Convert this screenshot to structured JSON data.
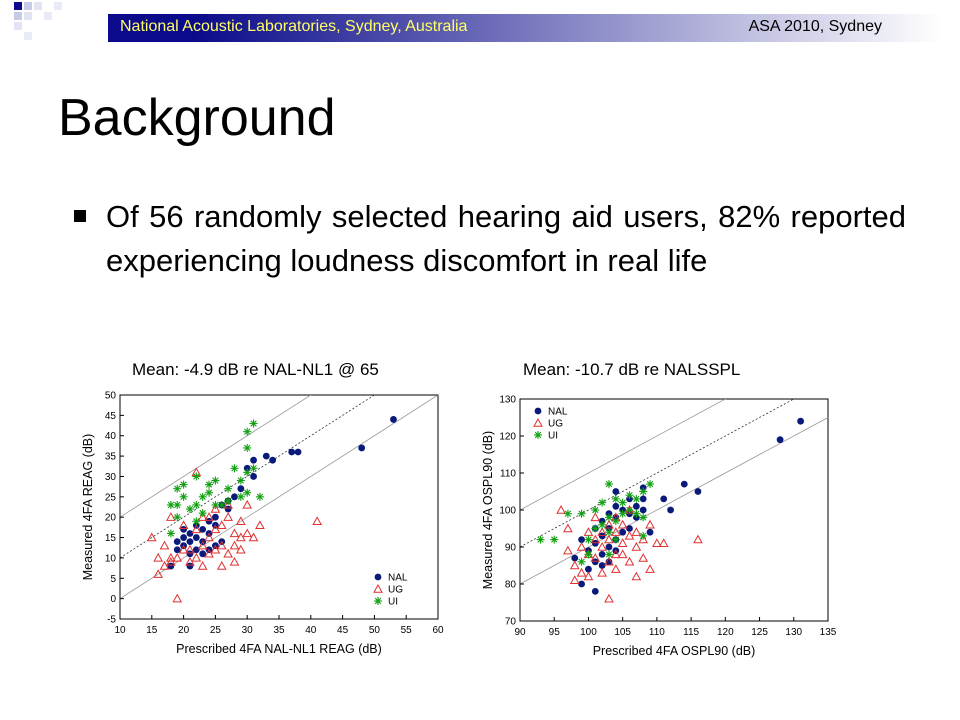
{
  "header": {
    "left_text": "National Acoustic Laboratories, Sydney, Australia",
    "right_text": "ASA 2010, Sydney"
  },
  "slide": {
    "title": "Background",
    "bullet": "Of 56 randomly selected hearing aid users, 82% reported experiencing loudness discomfort in real life"
  },
  "colors": {
    "header_gradient_start": "#0a0a8a",
    "header_gradient_end": "#ffffff",
    "header_left_text": "#ffff66",
    "nal": "#0a1a7a",
    "ug": "#e03030",
    "ui": "#10a010"
  },
  "chart_data": [
    {
      "type": "scatter",
      "heading": "Mean: -4.9 dB re NAL-NL1 @ 65",
      "xlabel": "Prescribed 4FA NAL-NL1 REAG (dB)",
      "ylabel": "Measured 4FA REAG (dB)",
      "xlim": [
        10,
        60
      ],
      "ylim": [
        -5,
        50
      ],
      "xticks": [
        10,
        15,
        20,
        25,
        30,
        35,
        40,
        45,
        50,
        55,
        60
      ],
      "yticks": [
        -5,
        0,
        5,
        10,
        15,
        20,
        25,
        30,
        35,
        40,
        45,
        50
      ],
      "reference_lines": [
        {
          "offset": -10,
          "style": "solid"
        },
        {
          "offset": 0,
          "style": "dotted"
        },
        {
          "offset": 10,
          "style": "solid"
        }
      ],
      "legend": {
        "position": "bottom-right",
        "entries": [
          "NAL",
          "UG",
          "UI"
        ]
      },
      "series": [
        {
          "name": "NAL",
          "marker": "circle",
          "points": [
            [
              18,
              8
            ],
            [
              19,
              12
            ],
            [
              19,
              14
            ],
            [
              20,
              13
            ],
            [
              20,
              15
            ],
            [
              20,
              17
            ],
            [
              21,
              8
            ],
            [
              21,
              11
            ],
            [
              21,
              14
            ],
            [
              21,
              16
            ],
            [
              22,
              12
            ],
            [
              22,
              15
            ],
            [
              22,
              18
            ],
            [
              23,
              11
            ],
            [
              23,
              14
            ],
            [
              23,
              17
            ],
            [
              24,
              12
            ],
            [
              24,
              16
            ],
            [
              24,
              19
            ],
            [
              25,
              13
            ],
            [
              25,
              18
            ],
            [
              25,
              20
            ],
            [
              26,
              14
            ],
            [
              26,
              23
            ],
            [
              27,
              22
            ],
            [
              27,
              24
            ],
            [
              28,
              25
            ],
            [
              29,
              27
            ],
            [
              30,
              32
            ],
            [
              31,
              30
            ],
            [
              31,
              34
            ],
            [
              33,
              35
            ],
            [
              34,
              34
            ],
            [
              37,
              36
            ],
            [
              38,
              36
            ],
            [
              48,
              37
            ],
            [
              53,
              44
            ]
          ]
        },
        {
          "name": "UG",
          "marker": "triangle",
          "points": [
            [
              15,
              15
            ],
            [
              16,
              6
            ],
            [
              16,
              10
            ],
            [
              17,
              8
            ],
            [
              17,
              13
            ],
            [
              18,
              9
            ],
            [
              18,
              10
            ],
            [
              18,
              20
            ],
            [
              19,
              0
            ],
            [
              19,
              10
            ],
            [
              20,
              12
            ],
            [
              20,
              18
            ],
            [
              21,
              9
            ],
            [
              21,
              12
            ],
            [
              22,
              10
            ],
            [
              22,
              17
            ],
            [
              22,
              31
            ],
            [
              23,
              8
            ],
            [
              23,
              13
            ],
            [
              23,
              20
            ],
            [
              24,
              11
            ],
            [
              24,
              15
            ],
            [
              24,
              20
            ],
            [
              25,
              12
            ],
            [
              25,
              17
            ],
            [
              25,
              22
            ],
            [
              26,
              8
            ],
            [
              26,
              13
            ],
            [
              26,
              18
            ],
            [
              27,
              11
            ],
            [
              27,
              20
            ],
            [
              27,
              23
            ],
            [
              28,
              9
            ],
            [
              28,
              13
            ],
            [
              28,
              16
            ],
            [
              29,
              12
            ],
            [
              29,
              15
            ],
            [
              29,
              19
            ],
            [
              30,
              16
            ],
            [
              30,
              23
            ],
            [
              31,
              15
            ],
            [
              32,
              18
            ],
            [
              41,
              19
            ]
          ]
        },
        {
          "name": "UI",
          "marker": "asterisk",
          "points": [
            [
              18,
              16
            ],
            [
              18,
              23
            ],
            [
              19,
              23
            ],
            [
              19,
              20
            ],
            [
              20,
              25
            ],
            [
              20,
              28
            ],
            [
              21,
              22
            ],
            [
              22,
              23
            ],
            [
              22,
              19
            ],
            [
              23,
              21
            ],
            [
              23,
              25
            ],
            [
              24,
              26
            ],
            [
              24,
              28
            ],
            [
              25,
              23
            ],
            [
              25,
              29
            ],
            [
              26,
              23
            ],
            [
              27,
              24
            ],
            [
              27,
              27
            ],
            [
              28,
              32
            ],
            [
              29,
              29
            ],
            [
              29,
              25
            ],
            [
              30,
              26
            ],
            [
              30,
              31
            ],
            [
              30,
              37
            ],
            [
              30,
              41
            ],
            [
              31,
              43
            ],
            [
              31,
              32
            ],
            [
              32,
              25
            ],
            [
              22,
              30
            ],
            [
              19,
              27
            ]
          ]
        }
      ]
    },
    {
      "type": "scatter",
      "heading": "Mean: -10.7 dB re NALSSPL",
      "xlabel": "Prescribed 4FA OSPL90 (dB)",
      "ylabel": "Measured 4FA OSPL90 (dB)",
      "xlim": [
        90,
        135
      ],
      "ylim": [
        70,
        130
      ],
      "xticks": [
        90,
        95,
        100,
        105,
        110,
        115,
        120,
        125,
        130,
        135
      ],
      "yticks": [
        70,
        80,
        90,
        100,
        110,
        120,
        130
      ],
      "reference_lines": [
        {
          "offset": -10,
          "style": "solid"
        },
        {
          "offset": 0,
          "style": "dotted"
        },
        {
          "offset": 10,
          "style": "solid"
        }
      ],
      "legend": {
        "position": "top-left",
        "entries": [
          "NAL",
          "UG",
          "UI"
        ]
      },
      "series": [
        {
          "name": "NAL",
          "marker": "circle",
          "points": [
            [
              98,
              87
            ],
            [
              99,
              80
            ],
            [
              99,
              92
            ],
            [
              100,
              84
            ],
            [
              100,
              89
            ],
            [
              101,
              78
            ],
            [
              101,
              86
            ],
            [
              101,
              91
            ],
            [
              101,
              95
            ],
            [
              102,
              85
            ],
            [
              102,
              88
            ],
            [
              102,
              93
            ],
            [
              102,
              97
            ],
            [
              103,
              86
            ],
            [
              103,
              90
            ],
            [
              103,
              95
            ],
            [
              103,
              99
            ],
            [
              104,
              89
            ],
            [
              104,
              92
            ],
            [
              104,
              98
            ],
            [
              104,
              101
            ],
            [
              104,
              105
            ],
            [
              105,
              94
            ],
            [
              105,
              100
            ],
            [
              106,
              95
            ],
            [
              106,
              99
            ],
            [
              106,
              103
            ],
            [
              107,
              98
            ],
            [
              107,
              101
            ],
            [
              108,
              100
            ],
            [
              108,
              106
            ],
            [
              108,
              103
            ],
            [
              109,
              94
            ],
            [
              111,
              103
            ],
            [
              112,
              100
            ],
            [
              114,
              107
            ],
            [
              116,
              105
            ],
            [
              128,
              119
            ],
            [
              131,
              124
            ]
          ]
        },
        {
          "name": "UG",
          "marker": "triangle",
          "points": [
            [
              96,
              100
            ],
            [
              97,
              95
            ],
            [
              97,
              89
            ],
            [
              98,
              85
            ],
            [
              98,
              81
            ],
            [
              99,
              90
            ],
            [
              99,
              83
            ],
            [
              100,
              88
            ],
            [
              100,
              94
            ],
            [
              100,
              82
            ],
            [
              101,
              98
            ],
            [
              101,
              87
            ],
            [
              101,
              92
            ],
            [
              102,
              83
            ],
            [
              102,
              90
            ],
            [
              102,
              94
            ],
            [
              103,
              76
            ],
            [
              103,
              86
            ],
            [
              103,
              96
            ],
            [
              103,
              92
            ],
            [
              104,
              88
            ],
            [
              104,
              94
            ],
            [
              104,
              98
            ],
            [
              104,
              84
            ],
            [
              105,
              91
            ],
            [
              105,
              88
            ],
            [
              105,
              96
            ],
            [
              106,
              86
            ],
            [
              106,
              93
            ],
            [
              106,
              100
            ],
            [
              107,
              82
            ],
            [
              107,
              90
            ],
            [
              107,
              94
            ],
            [
              108,
              87
            ],
            [
              108,
              92
            ],
            [
              109,
              84
            ],
            [
              109,
              96
            ],
            [
              110,
              91
            ],
            [
              111,
              91
            ],
            [
              116,
              92
            ]
          ]
        },
        {
          "name": "UI",
          "marker": "asterisk",
          "points": [
            [
              93,
              92
            ],
            [
              95,
              92
            ],
            [
              97,
              99
            ],
            [
              99,
              99
            ],
            [
              100,
              92
            ],
            [
              100,
              88
            ],
            [
              101,
              95
            ],
            [
              101,
              100
            ],
            [
              102,
              96
            ],
            [
              102,
              102
            ],
            [
              103,
              94
            ],
            [
              103,
              107
            ],
            [
              103,
              98
            ],
            [
              104,
              92
            ],
            [
              104,
              97
            ],
            [
              104,
              103
            ],
            [
              105,
              99
            ],
            [
              105,
              102
            ],
            [
              106,
              100
            ],
            [
              106,
              104
            ],
            [
              107,
              99
            ],
            [
              107,
              103
            ],
            [
              108,
              105
            ],
            [
              108,
              93
            ],
            [
              108,
              98
            ],
            [
              109,
              107
            ],
            [
              103,
              88
            ],
            [
              99,
              86
            ]
          ]
        }
      ]
    }
  ]
}
